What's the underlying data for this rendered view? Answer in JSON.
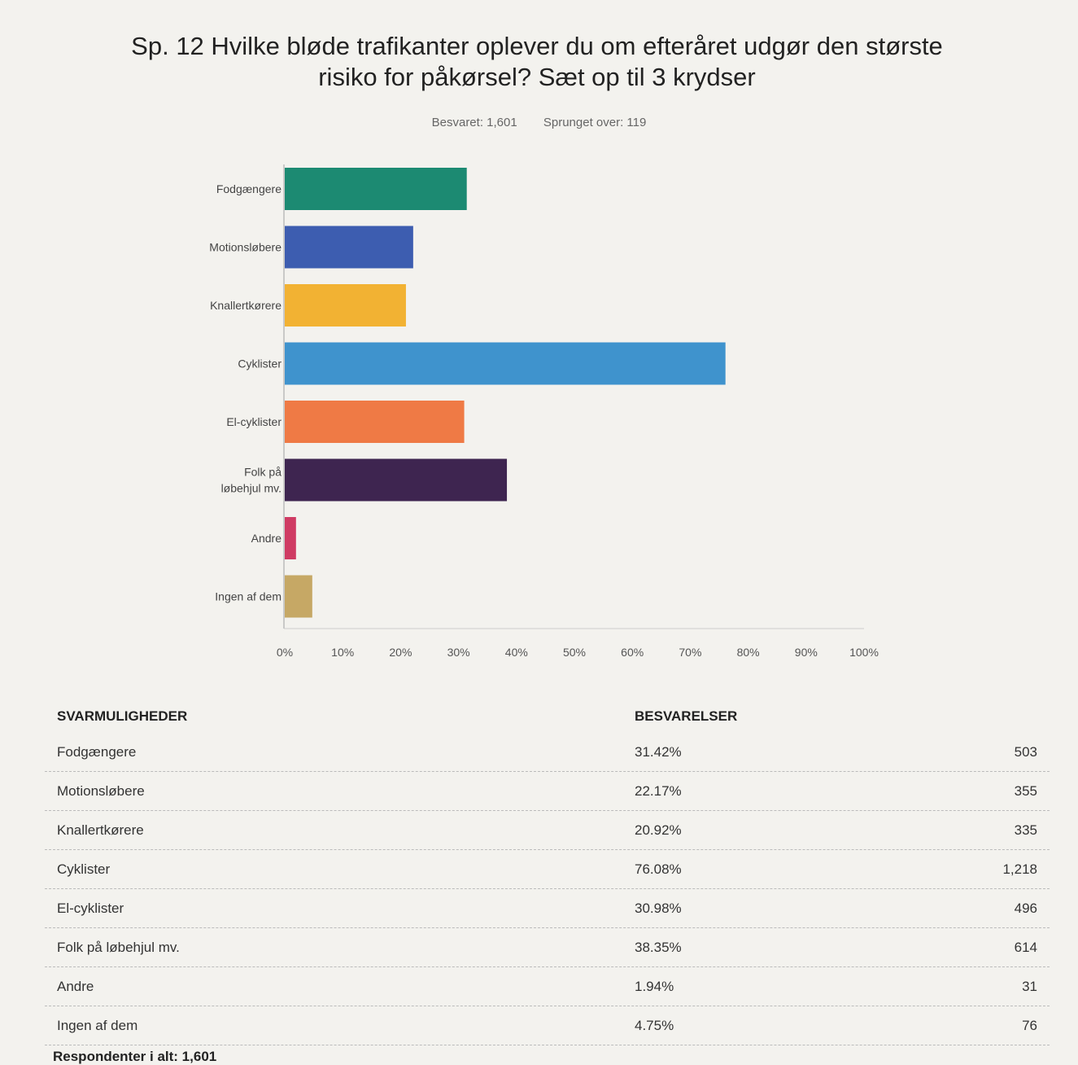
{
  "title_line1": "Sp. 12 Hvilke bløde trafikanter oplever du om efteråret udgør den største",
  "title_line2": "risiko for påkørsel? Sæt op til 3 krydser",
  "answered": "Besvaret: 1,601",
  "skipped": "Sprunget over: 119",
  "chart_data": {
    "type": "bar",
    "orientation": "horizontal",
    "categories": [
      "Fodgængere",
      "Motionsløbere",
      "Knallertkørere",
      "Cyklister",
      "El-cyklister",
      "Folk på løbehjul mv.",
      "Andre",
      "Ingen af dem"
    ],
    "category_lines": [
      [
        "Fodgængere"
      ],
      [
        "Motionsløbere"
      ],
      [
        "Knallertkørere"
      ],
      [
        "Cyklister"
      ],
      [
        "El-cyklister"
      ],
      [
        "Folk på",
        "løbehjul mv."
      ],
      [
        "Andre"
      ],
      [
        "Ingen af dem"
      ]
    ],
    "values": [
      31.42,
      22.17,
      20.92,
      76.08,
      30.98,
      38.35,
      1.94,
      4.75
    ],
    "colors": [
      "#1c8a72",
      "#3d5db0",
      "#f2b233",
      "#3f93cd",
      "#ef7a45",
      "#3e2550",
      "#cf3b63",
      "#c6a865"
    ],
    "xlim": [
      0,
      100
    ],
    "xticks": [
      "0%",
      "10%",
      "20%",
      "30%",
      "40%",
      "50%",
      "60%",
      "70%",
      "80%",
      "90%",
      "100%"
    ],
    "grid": false,
    "legend": "none"
  },
  "table": {
    "headers": [
      "SVARMULIGHEDER",
      "BESVARELSER"
    ],
    "rows": [
      {
        "label": "Fodgængere",
        "pct": "31.42%",
        "count": "503"
      },
      {
        "label": "Motionsløbere",
        "pct": "22.17%",
        "count": "355"
      },
      {
        "label": "Knallertkørere",
        "pct": "20.92%",
        "count": "335"
      },
      {
        "label": "Cyklister",
        "pct": "76.08%",
        "count": "1,218"
      },
      {
        "label": "El-cyklister",
        "pct": "30.98%",
        "count": "496"
      },
      {
        "label": "Folk på løbehjul mv.",
        "pct": "38.35%",
        "count": "614"
      },
      {
        "label": "Andre",
        "pct": "1.94%",
        "count": "31"
      },
      {
        "label": "Ingen af dem",
        "pct": "4.75%",
        "count": "76"
      }
    ],
    "total": "Respondenter i alt: 1,601"
  }
}
